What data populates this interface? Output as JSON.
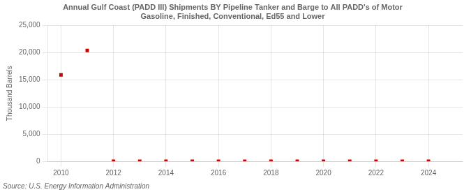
{
  "chart_data": {
    "type": "scatter",
    "title": "Annual Gulf Coast (PADD III) Shipments BY Pipeline Tanker and Barge to All PADD's of Motor\nGasoline, Finished, Conventional, Ed55 and Lower",
    "ylabel": "Thousand Barrels",
    "source": "Source: U.S. Energy Information Administration",
    "x": [
      2010,
      2011,
      2012,
      2013,
      2014,
      2015,
      2016,
      2017,
      2018,
      2019,
      2020,
      2021,
      2022,
      2023,
      2024
    ],
    "values": [
      15900,
      20400,
      0,
      0,
      0,
      0,
      0,
      0,
      0,
      0,
      0,
      0,
      0,
      0,
      0
    ],
    "color": "#cc0000",
    "marker": "square",
    "xlim": [
      2009.5,
      2025.3
    ],
    "xticks": [
      2010,
      2012,
      2014,
      2016,
      2018,
      2020,
      2022,
      2024
    ],
    "ylim": [
      0,
      25000
    ],
    "yticks": [
      0,
      {
        "value": 5000,
        "label": "5,000"
      },
      {
        "value": 10000,
        "label": "10,000"
      },
      {
        "value": 15000,
        "label": "15,000"
      },
      {
        "value": 20000,
        "label": "20,000"
      },
      {
        "value": 25000,
        "label": "25,000"
      }
    ],
    "grid": true
  }
}
